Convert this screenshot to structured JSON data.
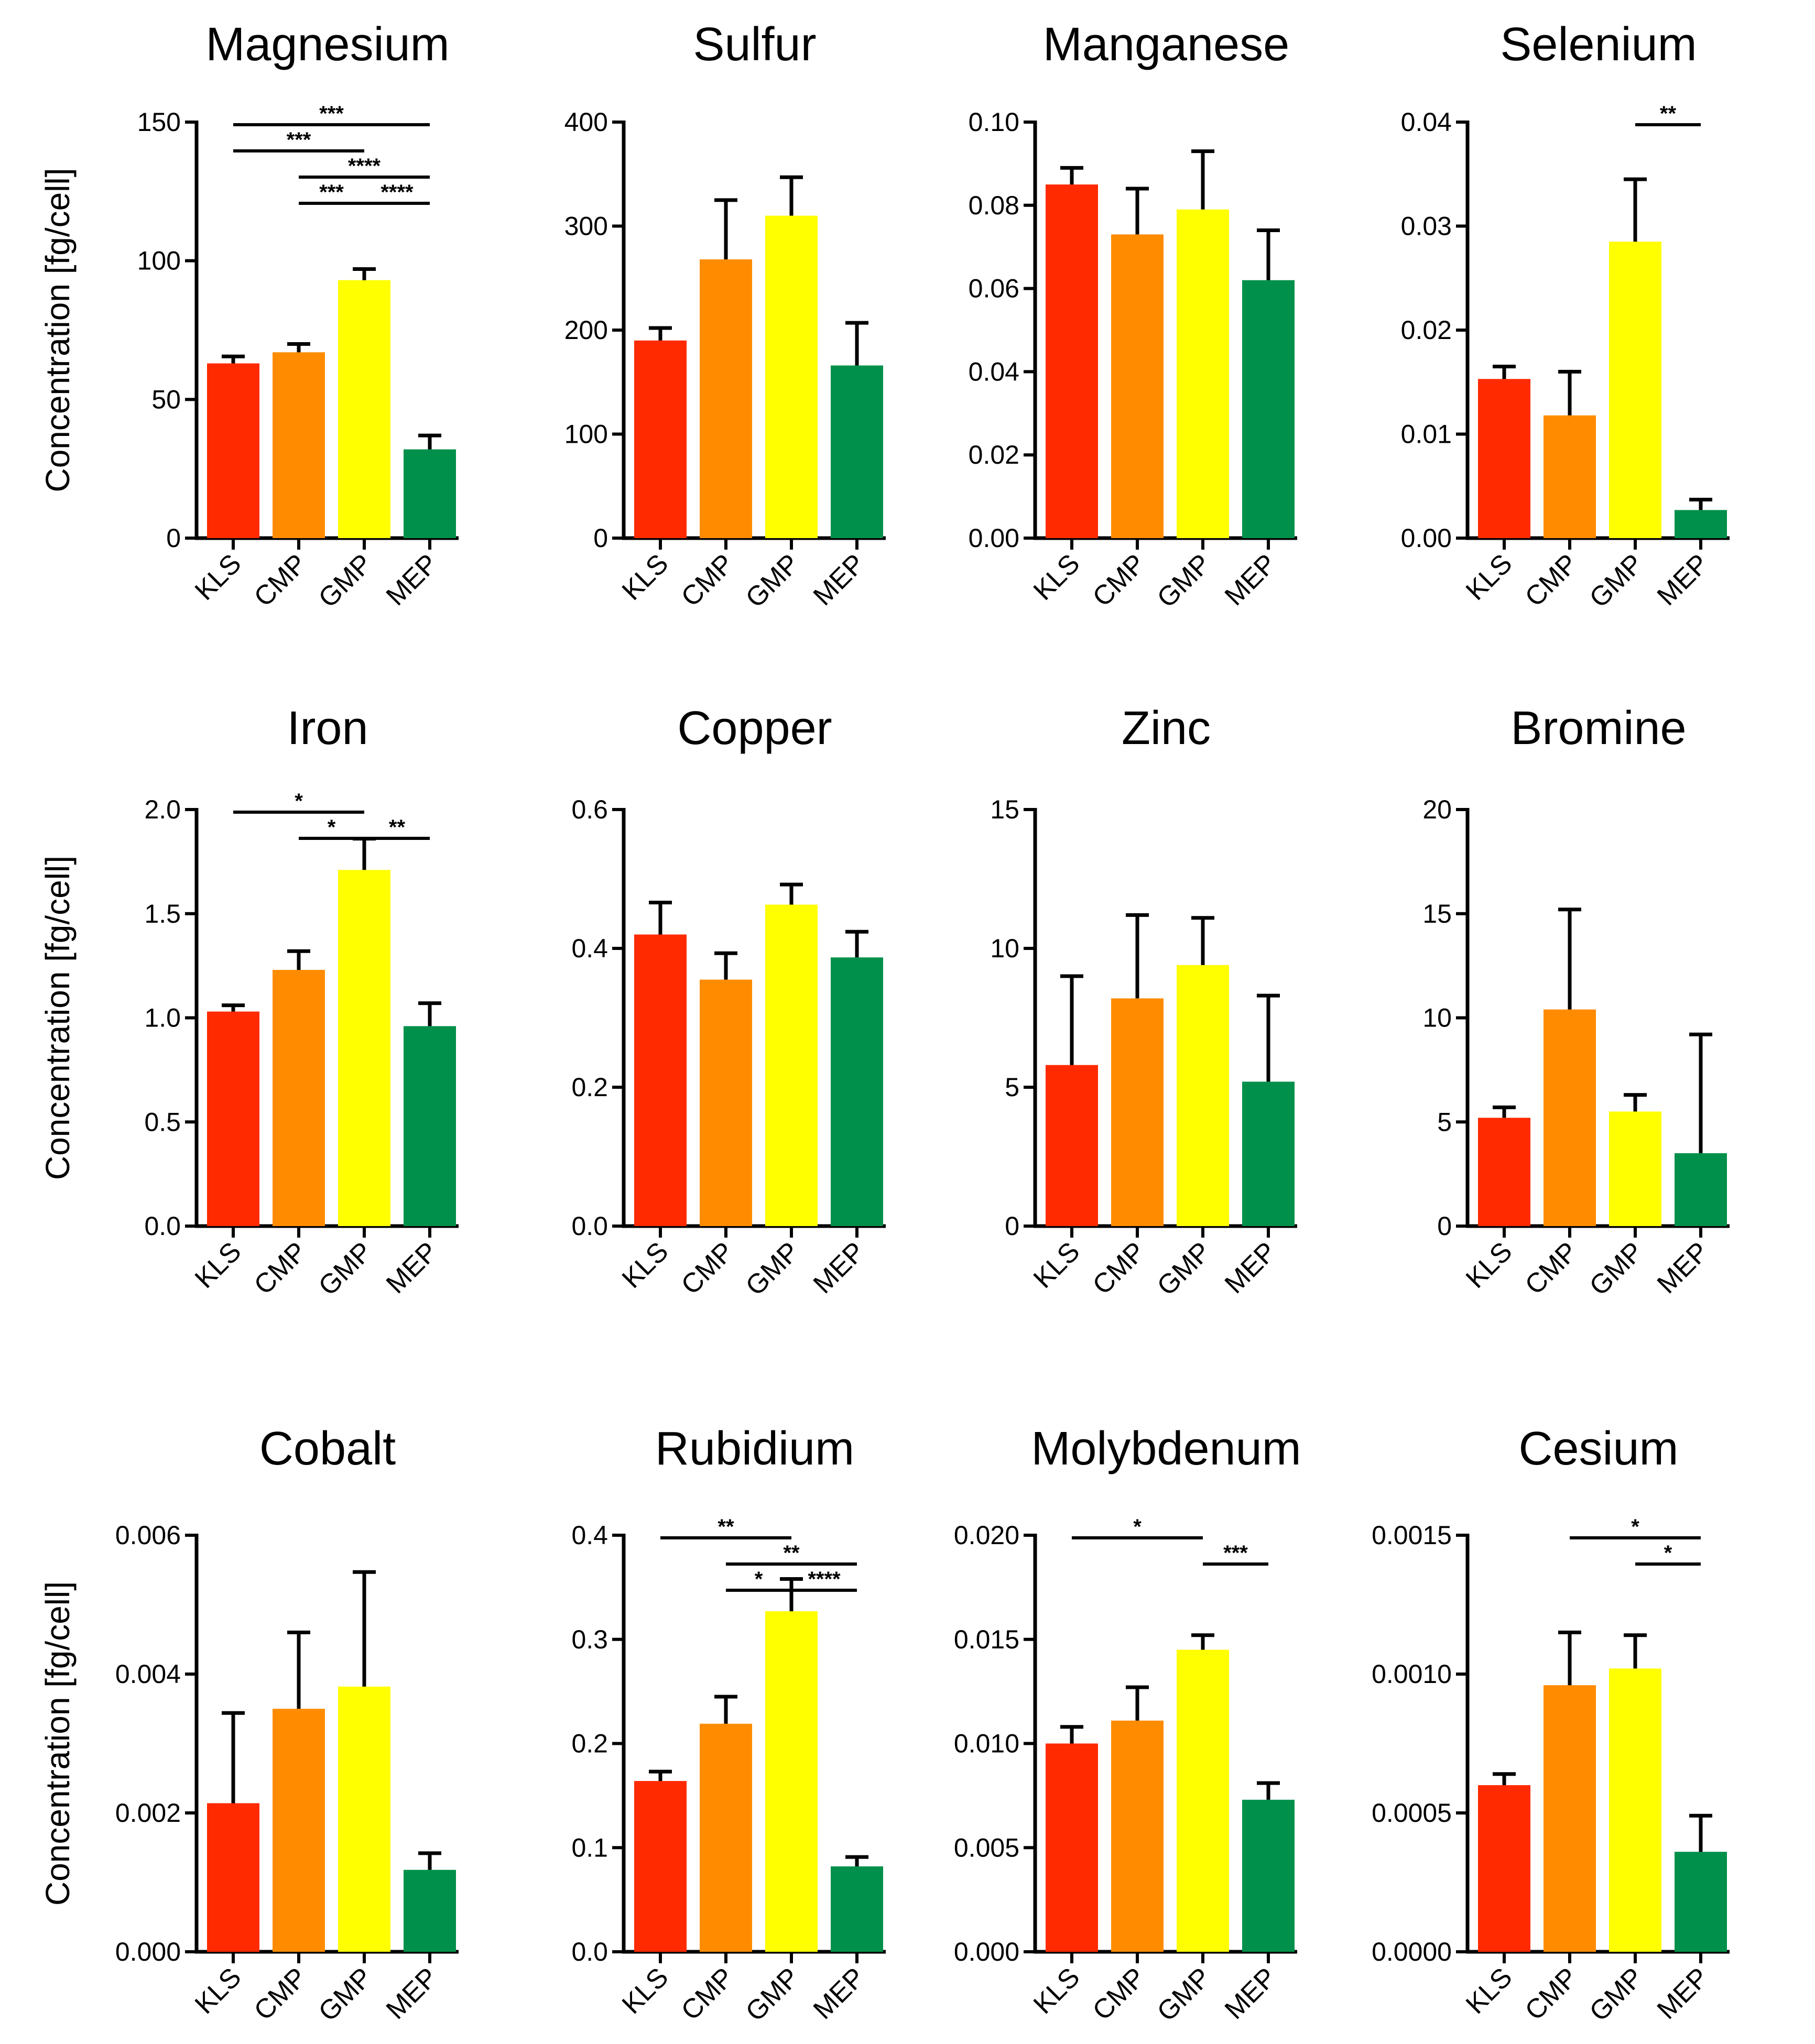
{
  "colors": {
    "KLS": "#ff2a00",
    "CMP": "#ff8c00",
    "GMP": "#ffff00",
    "MEP": "#00904b",
    "axis": "#000000"
  },
  "chart_data": [
    {
      "type": "bar",
      "title": "Magnesium",
      "ylabel": "Concentration [fg/cell]",
      "categories": [
        "KLS",
        "CMP",
        "GMP",
        "MEP"
      ],
      "values": [
        63,
        67,
        93,
        32
      ],
      "errors": [
        2.5,
        3,
        4,
        5
      ],
      "ylim": [
        0,
        150
      ],
      "yticks": [
        "0",
        "50",
        "100",
        "150"
      ],
      "significance": [
        {
          "from": "KLS",
          "to": "MEP",
          "label": "***",
          "level": 0
        },
        {
          "from": "KLS",
          "to": "GMP",
          "label": "***",
          "level": 1
        },
        {
          "from": "CMP",
          "to": "MEP",
          "label": "****",
          "level": 2
        },
        {
          "from": "CMP",
          "to": "GMP",
          "label": "***",
          "level": 3
        },
        {
          "from": "GMP",
          "to": "MEP",
          "label": "****",
          "level": 3
        }
      ]
    },
    {
      "type": "bar",
      "title": "Sulfur",
      "ylabel": "",
      "categories": [
        "KLS",
        "CMP",
        "GMP",
        "MEP"
      ],
      "values": [
        190,
        268,
        310,
        166
      ],
      "errors": [
        12,
        57,
        37,
        41
      ],
      "ylim": [
        0,
        400
      ],
      "yticks": [
        "0",
        "100",
        "200",
        "300",
        "400"
      ],
      "significance": []
    },
    {
      "type": "bar",
      "title": "Manganese",
      "ylabel": "",
      "categories": [
        "KLS",
        "CMP",
        "GMP",
        "MEP"
      ],
      "values": [
        0.085,
        0.073,
        0.079,
        0.062
      ],
      "errors": [
        0.004,
        0.011,
        0.014,
        0.012
      ],
      "ylim": [
        0,
        0.1
      ],
      "yticks": [
        "0.00",
        "0.02",
        "0.04",
        "0.06",
        "0.08",
        "0.10"
      ],
      "significance": []
    },
    {
      "type": "bar",
      "title": "Selenium",
      "ylabel": "",
      "categories": [
        "KLS",
        "CMP",
        "GMP",
        "MEP"
      ],
      "values": [
        0.0153,
        0.0118,
        0.0285,
        0.0027
      ],
      "errors": [
        0.0012,
        0.0042,
        0.006,
        0.001
      ],
      "ylim": [
        0,
        0.04
      ],
      "yticks": [
        "0.00",
        "0.01",
        "0.02",
        "0.03",
        "0.04"
      ],
      "significance": [
        {
          "from": "GMP",
          "to": "MEP",
          "label": "**",
          "level": 0
        }
      ]
    },
    {
      "type": "bar",
      "title": "Iron",
      "ylabel": "Concentration [fg/cell]",
      "categories": [
        "KLS",
        "CMP",
        "GMP",
        "MEP"
      ],
      "values": [
        1.03,
        1.23,
        1.71,
        0.96
      ],
      "errors": [
        0.03,
        0.09,
        0.15,
        0.11
      ],
      "ylim": [
        0,
        2.0
      ],
      "yticks": [
        "0.0",
        "0.5",
        "1.0",
        "1.5",
        "2.0"
      ],
      "significance": [
        {
          "from": "KLS",
          "to": "GMP",
          "label": "*",
          "level": 0
        },
        {
          "from": "CMP",
          "to": "GMP",
          "label": "*",
          "level": 1
        },
        {
          "from": "GMP",
          "to": "MEP",
          "label": "**",
          "level": 1
        }
      ]
    },
    {
      "type": "bar",
      "title": "Copper",
      "ylabel": "",
      "categories": [
        "KLS",
        "CMP",
        "GMP",
        "MEP"
      ],
      "values": [
        0.42,
        0.355,
        0.463,
        0.387
      ],
      "errors": [
        0.046,
        0.038,
        0.029,
        0.037
      ],
      "ylim": [
        0,
        0.6
      ],
      "yticks": [
        "0.0",
        "0.2",
        "0.4",
        "0.6"
      ],
      "significance": []
    },
    {
      "type": "bar",
      "title": "Zinc",
      "ylabel": "",
      "categories": [
        "KLS",
        "CMP",
        "GMP",
        "MEP"
      ],
      "values": [
        5.8,
        8.2,
        9.4,
        5.2
      ],
      "errors": [
        3.2,
        3.0,
        1.7,
        3.1
      ],
      "ylim": [
        0,
        15
      ],
      "yticks": [
        "0",
        "5",
        "10",
        "15"
      ],
      "significance": []
    },
    {
      "type": "bar",
      "title": "Bromine",
      "ylabel": "",
      "categories": [
        "KLS",
        "CMP",
        "GMP",
        "MEP"
      ],
      "values": [
        5.2,
        10.4,
        5.5,
        3.5
      ],
      "errors": [
        0.5,
        4.8,
        0.8,
        5.7
      ],
      "ylim": [
        0,
        20
      ],
      "yticks": [
        "0",
        "5",
        "10",
        "15",
        "20"
      ],
      "significance": []
    },
    {
      "type": "bar",
      "title": "Cobalt",
      "ylabel": "Concentration [fg/cell]",
      "categories": [
        "KLS",
        "CMP",
        "GMP",
        "MEP"
      ],
      "values": [
        0.00214,
        0.0035,
        0.00382,
        0.00118
      ],
      "errors": [
        0.0013,
        0.0011,
        0.00165,
        0.00024
      ],
      "ylim": [
        0,
        0.006
      ],
      "yticks": [
        "0.000",
        "0.002",
        "0.004",
        "0.006"
      ],
      "significance": []
    },
    {
      "type": "bar",
      "title": "Rubidium",
      "ylabel": "",
      "categories": [
        "KLS",
        "CMP",
        "GMP",
        "MEP"
      ],
      "values": [
        0.164,
        0.219,
        0.327,
        0.082
      ],
      "errors": [
        0.009,
        0.026,
        0.031,
        0.009
      ],
      "ylim": [
        0,
        0.4
      ],
      "yticks": [
        "0.0",
        "0.1",
        "0.2",
        "0.3",
        "0.4"
      ],
      "significance": [
        {
          "from": "KLS",
          "to": "GMP",
          "label": "**",
          "level": 0
        },
        {
          "from": "CMP",
          "to": "MEP",
          "label": "**",
          "level": 1
        },
        {
          "from": "CMP",
          "to": "GMP",
          "label": "*",
          "level": 2
        },
        {
          "from": "GMP",
          "to": "MEP",
          "label": "****",
          "level": 2
        }
      ]
    },
    {
      "type": "bar",
      "title": "Molybdenum",
      "ylabel": "",
      "categories": [
        "KLS",
        "CMP",
        "GMP",
        "MEP"
      ],
      "values": [
        0.01,
        0.0111,
        0.0145,
        0.0073
      ],
      "errors": [
        0.0008,
        0.0016,
        0.0007,
        0.0008
      ],
      "ylim": [
        0,
        0.02
      ],
      "yticks": [
        "0.000",
        "0.005",
        "0.010",
        "0.015",
        "0.020"
      ],
      "significance": [
        {
          "from": "KLS",
          "to": "GMP",
          "label": "*",
          "level": 0
        },
        {
          "from": "GMP",
          "to": "MEP",
          "label": "***",
          "level": 1
        }
      ]
    },
    {
      "type": "bar",
      "title": "Cesium",
      "ylabel": "",
      "categories": [
        "KLS",
        "CMP",
        "GMP",
        "MEP"
      ],
      "values": [
        0.0006,
        0.00096,
        0.00102,
        0.00036
      ],
      "errors": [
        4e-05,
        0.00019,
        0.00012,
        0.00013
      ],
      "ylim": [
        0,
        0.0015
      ],
      "yticks": [
        "0.0000",
        "0.0005",
        "0.0010",
        "0.0015"
      ],
      "significance": [
        {
          "from": "CMP",
          "to": "MEP",
          "label": "*",
          "level": 0
        },
        {
          "from": "GMP",
          "to": "MEP",
          "label": "*",
          "level": 1
        }
      ]
    }
  ]
}
